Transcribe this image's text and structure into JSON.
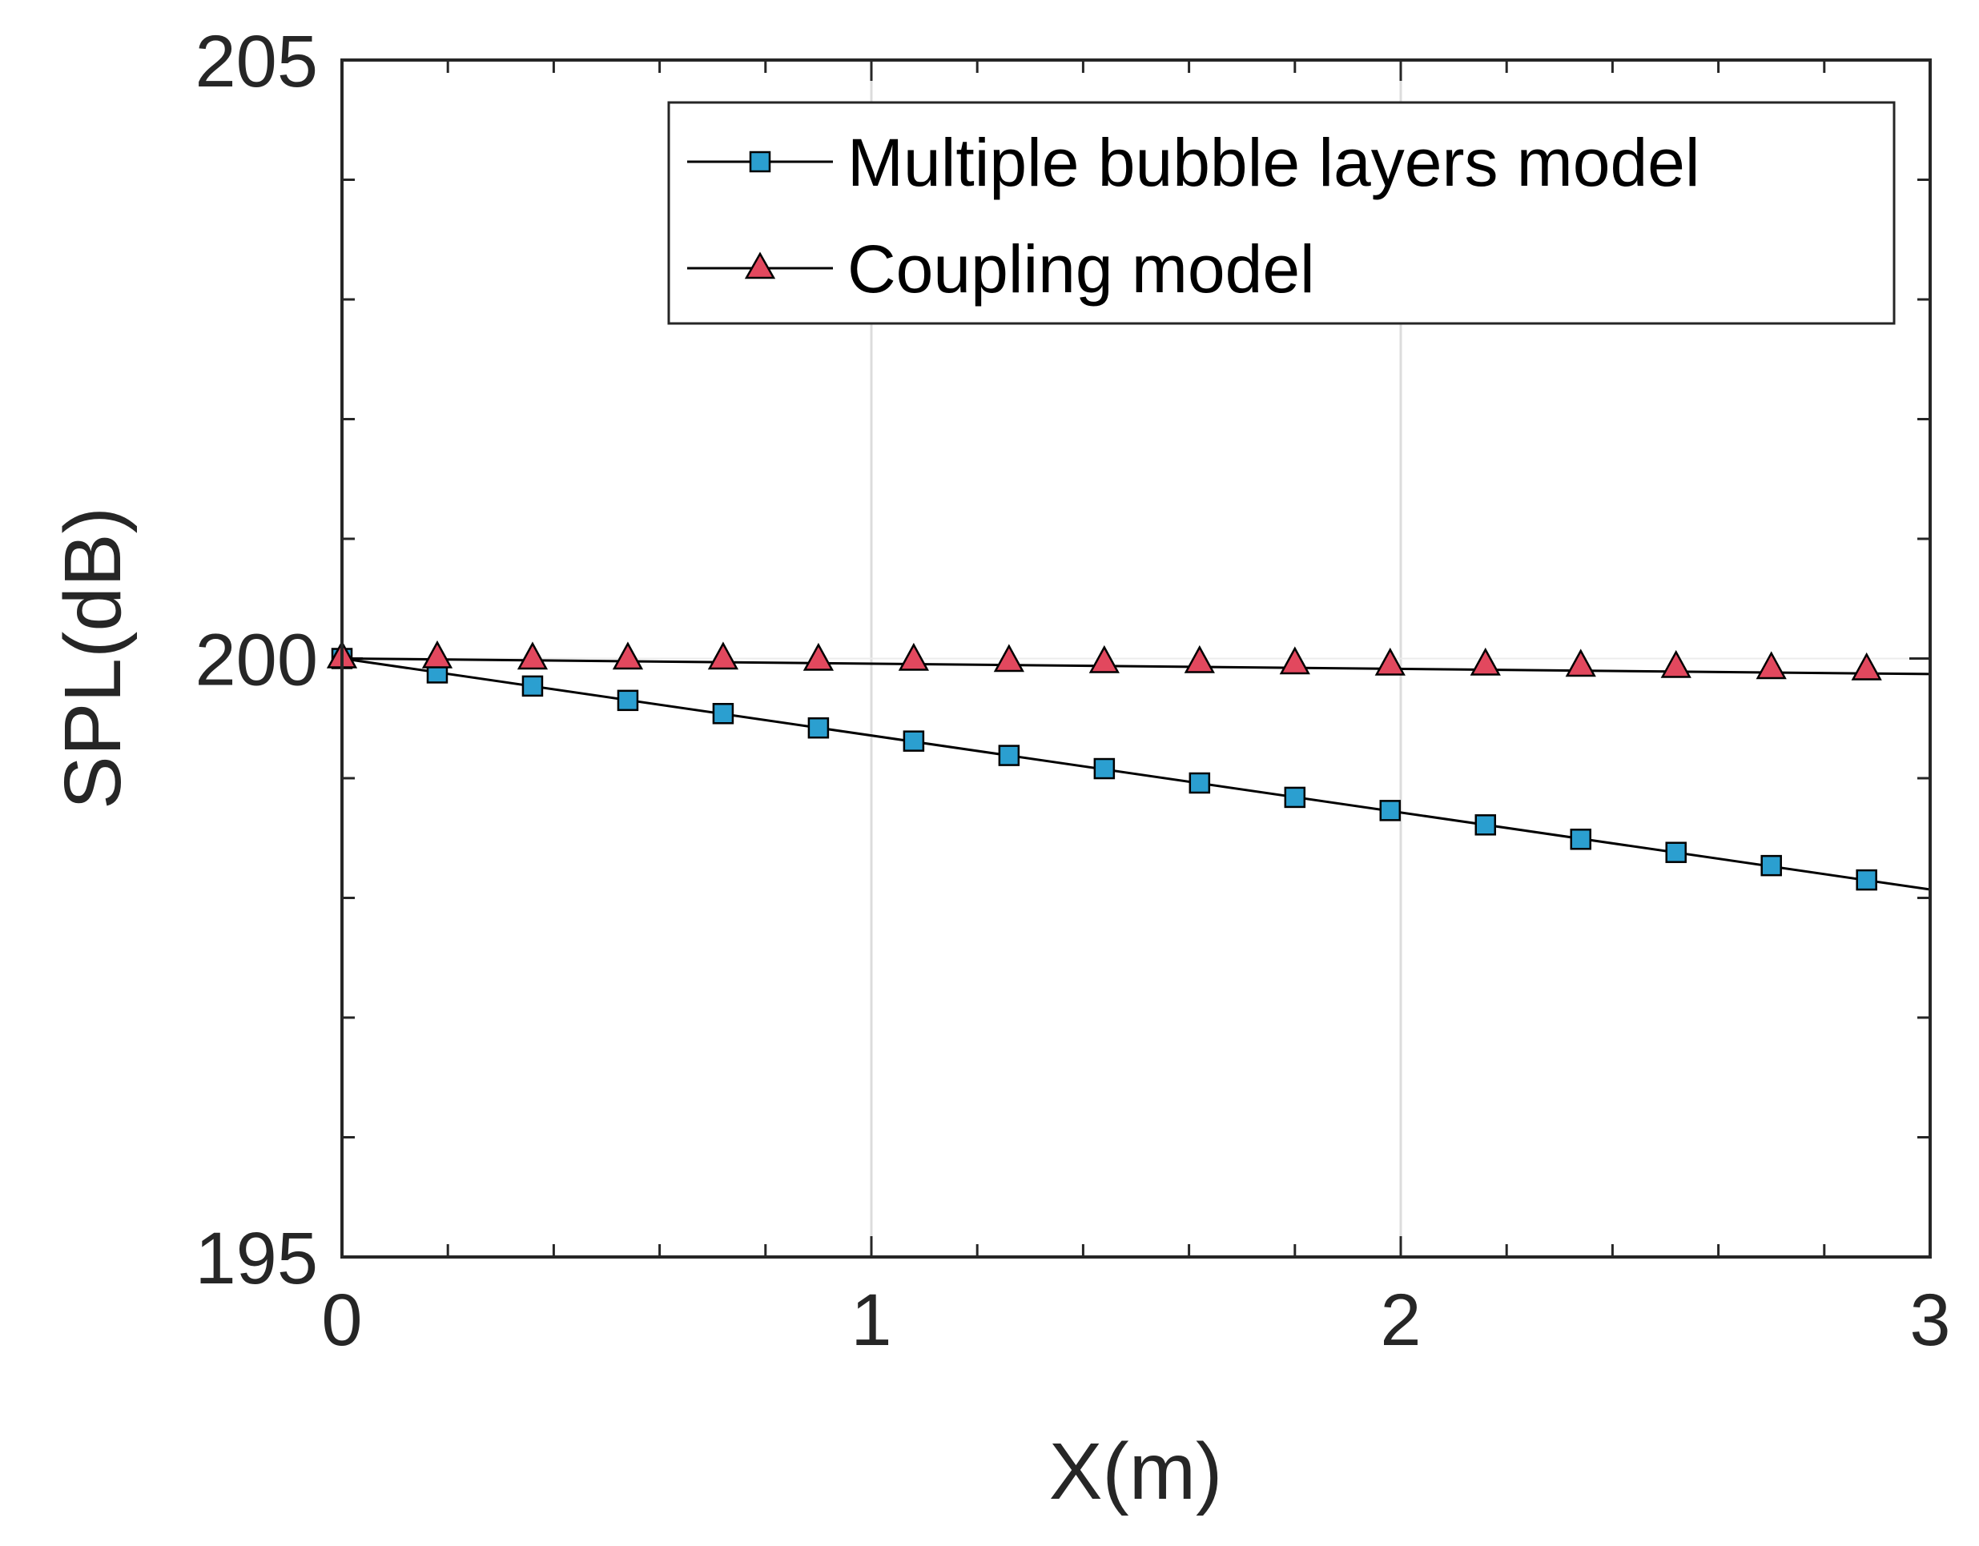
{
  "chart_data": {
    "type": "line",
    "title": "",
    "xlabel": "X(m)",
    "ylabel": "SPL(dB)",
    "xlim": [
      0,
      3
    ],
    "ylim": [
      195,
      205
    ],
    "xticks": [
      0,
      1,
      2,
      3
    ],
    "yticks": [
      195,
      200,
      205
    ],
    "xtick_labels": [
      "0",
      "1",
      "2",
      "3"
    ],
    "ytick_labels": [
      "195",
      "200",
      "205"
    ],
    "grid": "vertical-major",
    "legend_position": "top-right",
    "series": [
      {
        "name": "Multiple bubble layers model",
        "marker": "square",
        "marker_color": "#2b9fd0",
        "line_color": "#000000",
        "line": {
          "x": [
            0,
            3
          ],
          "y": [
            200.0,
            198.07
          ]
        },
        "x": [
          0,
          0.18,
          0.36,
          0.54,
          0.72,
          0.9,
          1.08,
          1.26,
          1.44,
          1.62,
          1.8,
          1.98,
          2.16,
          2.34,
          2.52,
          2.7,
          2.88
        ],
        "y": [
          200.0,
          199.88,
          199.77,
          199.65,
          199.54,
          199.42,
          199.31,
          199.19,
          199.08,
          198.96,
          198.84,
          198.73,
          198.61,
          198.49,
          198.38,
          198.27,
          198.15
        ]
      },
      {
        "name": "Coupling model",
        "marker": "triangle",
        "marker_color": "#e2485e",
        "line_color": "#000000",
        "line": {
          "x": [
            0,
            3
          ],
          "y": [
            200.0,
            199.87
          ]
        },
        "x": [
          0,
          0.18,
          0.36,
          0.54,
          0.72,
          0.9,
          1.08,
          1.26,
          1.44,
          1.62,
          1.8,
          1.98,
          2.16,
          2.34,
          2.52,
          2.7,
          2.88
        ],
        "y": [
          200.0,
          200.0,
          199.99,
          199.99,
          199.99,
          199.98,
          199.98,
          199.97,
          199.96,
          199.96,
          199.95,
          199.94,
          199.94,
          199.93,
          199.92,
          199.91,
          199.9
        ]
      }
    ]
  }
}
